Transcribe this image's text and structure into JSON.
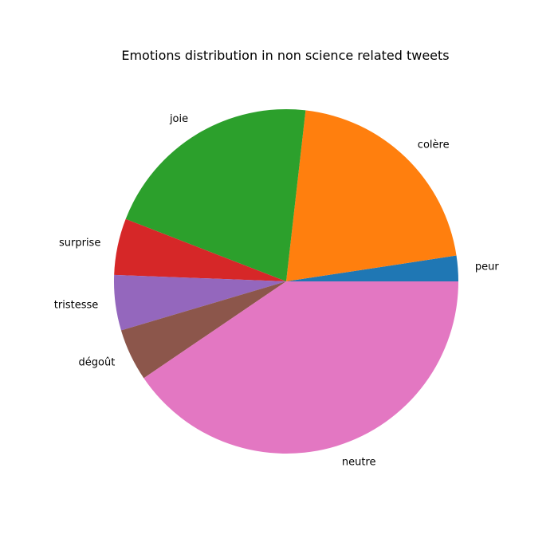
{
  "chart_data": {
    "type": "pie",
    "title": "Emotions distribution in non science related tweets",
    "categories": [
      "peur",
      "colère",
      "joie",
      "surprise",
      "tristesse",
      "dégoût",
      "neutre"
    ],
    "values": [
      2.4,
      20.8,
      20.9,
      5.3,
      5.2,
      4.9,
      40.5
    ],
    "colors": [
      "#1f77b4",
      "#ff7f0e",
      "#2ca02c",
      "#d62728",
      "#9467bd",
      "#8c564b",
      "#e377c2"
    ],
    "start_angle_deg": 0,
    "direction": "counterclockwise"
  }
}
